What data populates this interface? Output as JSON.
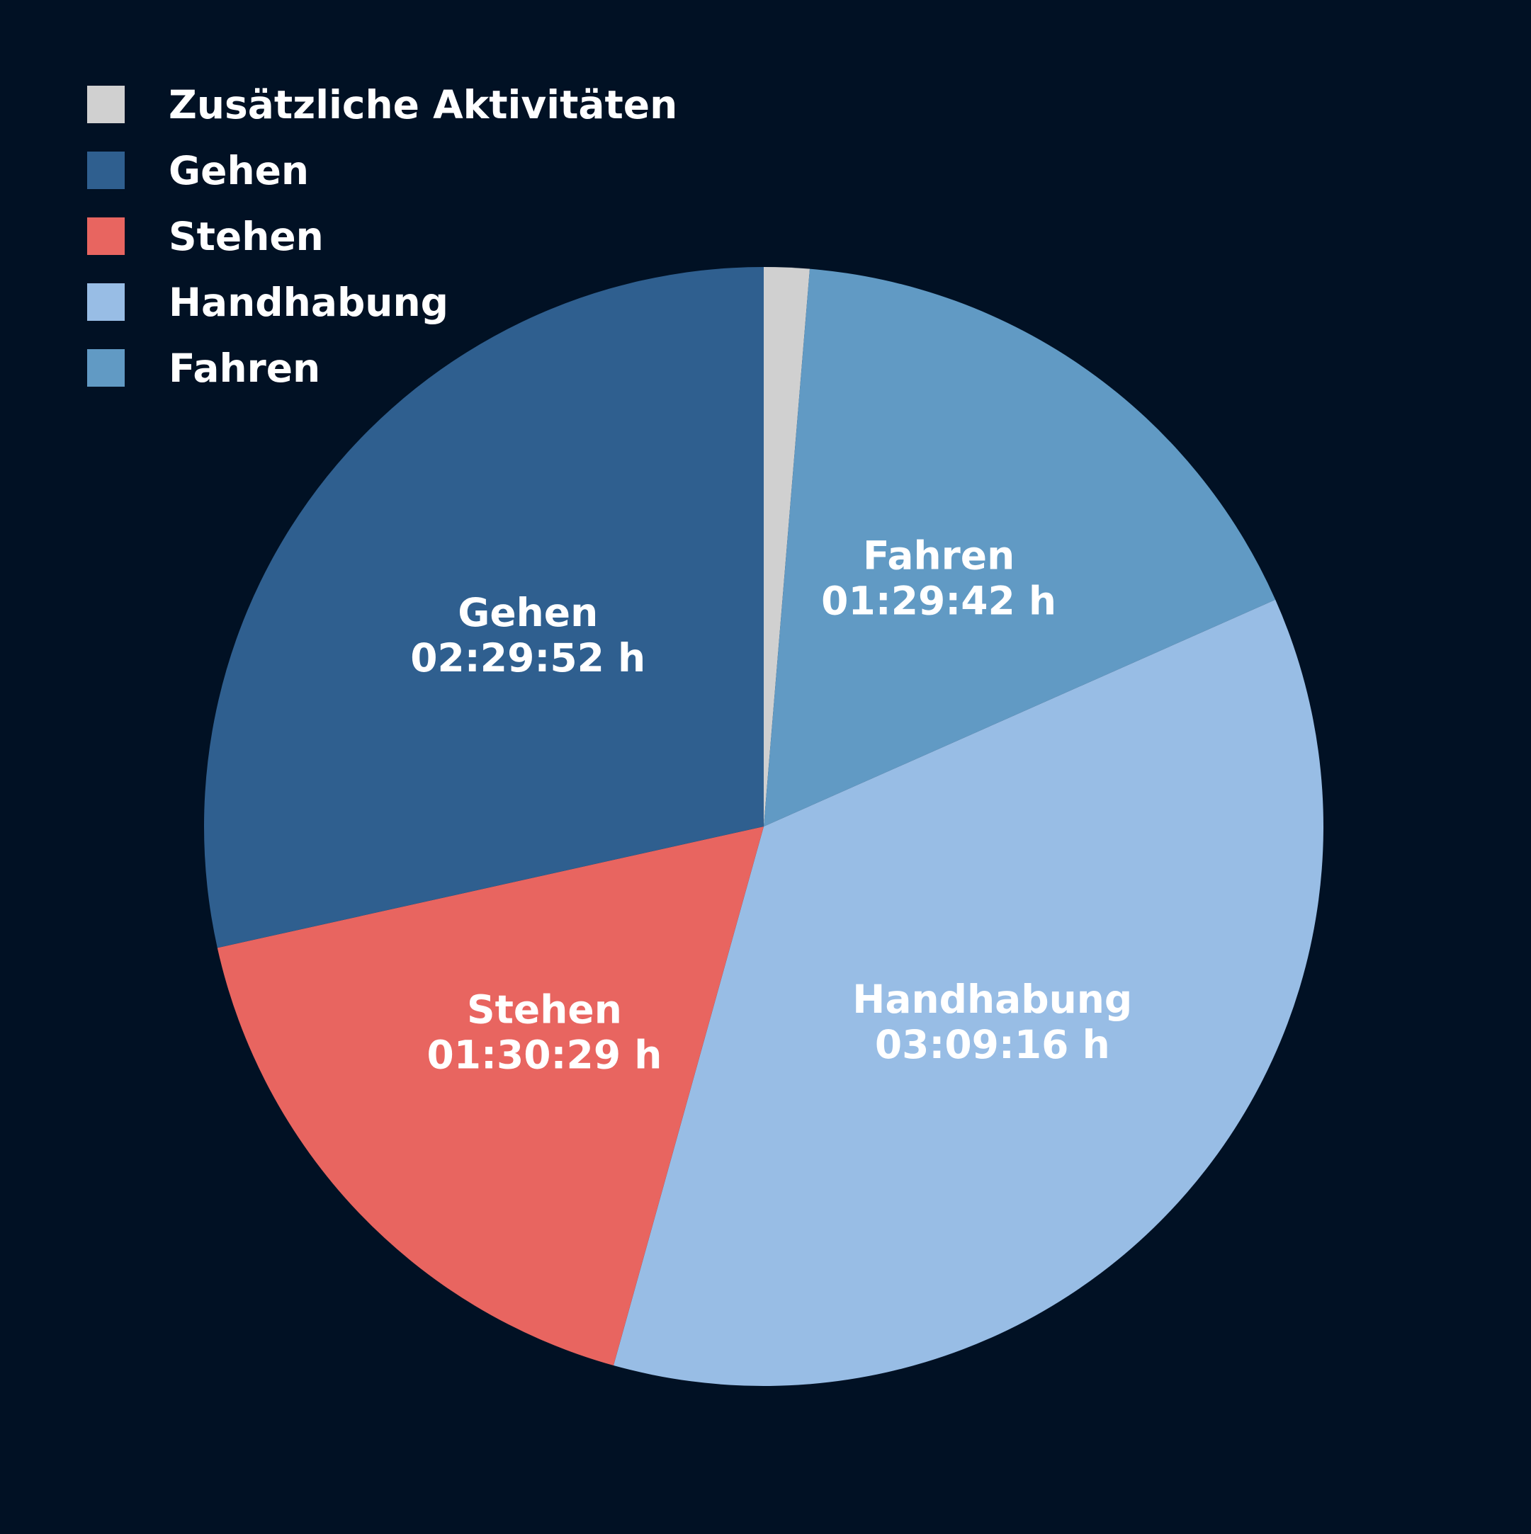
{
  "chart_data": {
    "type": "pie",
    "title": "",
    "unit": "h",
    "start": "top",
    "direction": "clockwise",
    "legend_position": "top-left",
    "slices": [
      {
        "name": "Zusätzliche Aktivitäten",
        "duration": "",
        "hours": 0.115,
        "color": "#d0d0d0",
        "show_label": false
      },
      {
        "name": "Fahren",
        "duration": "01:29:42 h",
        "hours": 1.495,
        "color": "#619ac4",
        "show_label": true
      },
      {
        "name": "Handhabung",
        "duration": "03:09:16 h",
        "hours": 3.1544,
        "color": "#98bde5",
        "show_label": true
      },
      {
        "name": "Stehen",
        "duration": "01:30:29 h",
        "hours": 1.5081,
        "color": "#e86560",
        "show_label": true
      },
      {
        "name": "Gehen",
        "duration": "02:29:52 h",
        "hours": 2.4978,
        "color": "#2f5f8f",
        "show_label": true
      }
    ],
    "legend": [
      {
        "label": "Zusätzliche Aktivitäten",
        "color": "#d0d0d0"
      },
      {
        "label": "Gehen",
        "color": "#2f5f8f"
      },
      {
        "label": "Stehen",
        "color": "#e86560"
      },
      {
        "label": "Handhabung",
        "color": "#98bde5"
      },
      {
        "label": "Fahren",
        "color": "#619ac4"
      }
    ]
  },
  "colors": {
    "background": "#011124",
    "text": "#ffffff"
  }
}
